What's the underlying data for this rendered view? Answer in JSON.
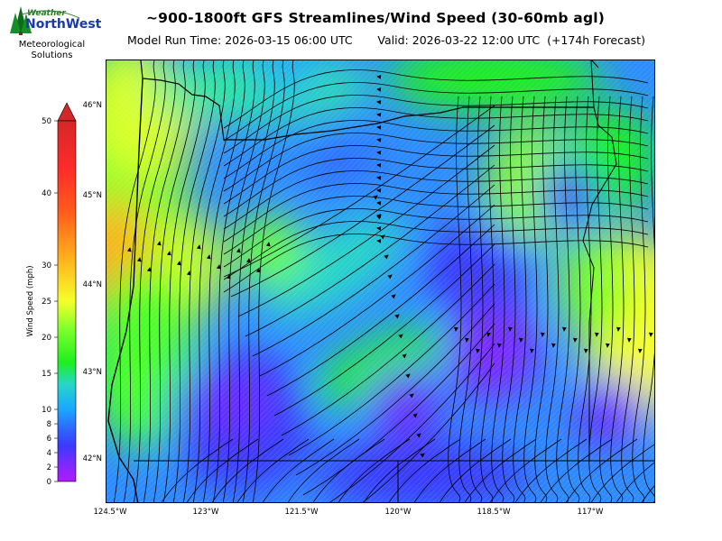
{
  "header": {
    "title": "~900-1800ft GFS Streamlines/Wind Speed (30-60mb agl)",
    "subtitle": "Model Run Time: 2026-03-15 06:00 UTC       Valid: 2026-03-22 12:00 UTC  (+174h Forecast)"
  },
  "logo": {
    "word1": "Weather",
    "word2": "NorthWest",
    "line1": "Meteorological",
    "line2": "Solutions",
    "icon": "pine-trees-icon"
  },
  "colorbar": {
    "label": "Wind Speed (mph)",
    "ticks": [
      "50",
      "40",
      "30",
      "25",
      "20",
      "15",
      "10",
      "8",
      "6",
      "4",
      "2",
      "0"
    ],
    "colors": [
      "#d62728",
      "#ff2a2a",
      "#ff8a1c",
      "#f6ff2a",
      "#7cff2a",
      "#1ef01e",
      "#26d7c8",
      "#1aa7ff",
      "#2d6bff",
      "#3a3aff",
      "#7a2aff",
      "#b01aff"
    ]
  },
  "axes": {
    "lat_ticks": [
      "46°N",
      "45°N",
      "44°N",
      "43°N",
      "42°N"
    ],
    "lon_ticks": [
      "124.5°W",
      "123°W",
      "121.5°W",
      "120°W",
      "118.5°W",
      "117°W"
    ]
  }
}
